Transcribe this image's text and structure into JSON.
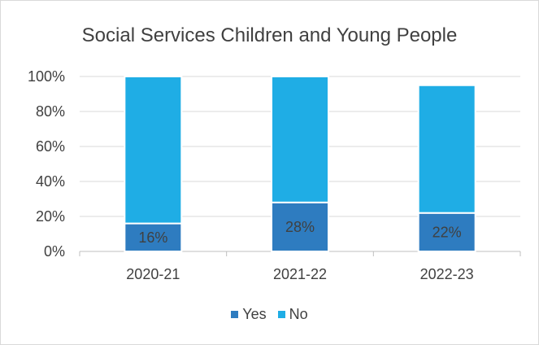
{
  "chart_data": {
    "type": "bar",
    "stacked": true,
    "title": "Social Services Children and Young People",
    "categories": [
      "2020-21",
      "2021-22",
      "2022-23"
    ],
    "series": [
      {
        "name": "Yes",
        "values": [
          16,
          28,
          22
        ],
        "labels": [
          "16%",
          "28%",
          "22%"
        ],
        "color": "#2e7cc0"
      },
      {
        "name": "No",
        "values": [
          84,
          72,
          73
        ],
        "color": "#1fade5"
      }
    ],
    "ylim": [
      0,
      100
    ],
    "yticks": [
      "0%",
      "20%",
      "40%",
      "60%",
      "80%",
      "100%"
    ],
    "grid": true,
    "legend_position": "bottom"
  }
}
